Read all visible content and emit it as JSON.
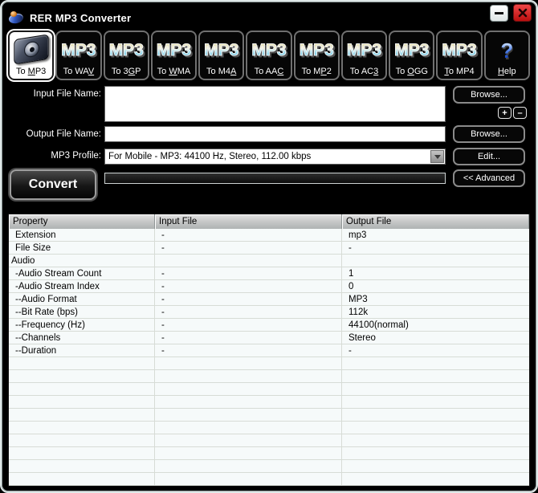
{
  "window": {
    "title": "RER MP3 Converter"
  },
  "toolbar": {
    "mp3_badge": "MP3",
    "help_glyph": "?",
    "buttons": [
      {
        "id": "to-mp3",
        "pre": "To ",
        "accel": "M",
        "post": "P3",
        "icon": "cd-player",
        "selected": true
      },
      {
        "id": "to-wav",
        "pre": "To WA",
        "accel": "V",
        "post": "",
        "icon": "mp3"
      },
      {
        "id": "to-3gp",
        "pre": "To 3",
        "accel": "G",
        "post": "P",
        "icon": "mp3"
      },
      {
        "id": "to-wma",
        "pre": "To ",
        "accel": "W",
        "post": "MA",
        "icon": "mp3"
      },
      {
        "id": "to-m4a",
        "pre": "To M4",
        "accel": "A",
        "post": "",
        "icon": "mp3"
      },
      {
        "id": "to-aac",
        "pre": "To AA",
        "accel": "C",
        "post": "",
        "icon": "mp3"
      },
      {
        "id": "to-mp2",
        "pre": "To M",
        "accel": "P",
        "post": "2",
        "icon": "mp3"
      },
      {
        "id": "to-ac3",
        "pre": "To AC",
        "accel": "3",
        "post": "",
        "icon": "mp3"
      },
      {
        "id": "to-ogg",
        "pre": "To ",
        "accel": "O",
        "post": "GG",
        "icon": "mp3"
      },
      {
        "id": "to-mp4",
        "pre": "",
        "accel": "T",
        "post": "o MP4",
        "icon": "mp3"
      },
      {
        "id": "help",
        "pre": "",
        "accel": "H",
        "post": "elp",
        "icon": "help"
      }
    ]
  },
  "form": {
    "input_label": "Input File Name:",
    "input_value": "",
    "output_label": "Output File Name:",
    "output_value": "",
    "profile_label": "MP3 Profile:",
    "profile_value": "For Mobile - MP3: 44100 Hz, Stereo, 112.00 kbps",
    "browse_input_label": "Browse...",
    "browse_output_label": "Browse...",
    "add_label": "+",
    "remove_label": "–",
    "edit_label": "Edit...",
    "convert_label": "Convert",
    "advanced_label": "<< Advanced",
    "progress_percent": 0
  },
  "table": {
    "columns": [
      "Property",
      "Input File",
      "Output File"
    ],
    "rows": [
      {
        "property": "Extension",
        "input": "-",
        "output": "mp3",
        "group": false
      },
      {
        "property": "File Size",
        "input": "-",
        "output": "-",
        "group": false
      },
      {
        "property": "Audio",
        "input": "",
        "output": "",
        "group": true
      },
      {
        "property": "-Audio Stream Count",
        "input": "-",
        "output": "1",
        "group": false
      },
      {
        "property": "-Audio Stream Index",
        "input": "-",
        "output": "0",
        "group": false
      },
      {
        "property": "--Audio Format",
        "input": "-",
        "output": "MP3",
        "group": false
      },
      {
        "property": "--Bit Rate (bps)",
        "input": "-",
        "output": "112k",
        "group": false
      },
      {
        "property": "--Frequency (Hz)",
        "input": "-",
        "output": "44100(normal)",
        "group": false
      },
      {
        "property": "--Channels",
        "input": "-",
        "output": "Stereo",
        "group": false
      },
      {
        "property": "--Duration",
        "input": "-",
        "output": "-",
        "group": false
      }
    ],
    "empty_row_count": 10
  },
  "colors": {
    "titlebar_bg": "#000000",
    "close_button": "#bb0f0f",
    "mp3_text_top": "#ded8a2",
    "mp3_text_bottom": "#3eb4dc",
    "help_blue": "#1340b8",
    "table_row_bg": "#f6fafa",
    "header_gray": "#bdbdbd"
  }
}
